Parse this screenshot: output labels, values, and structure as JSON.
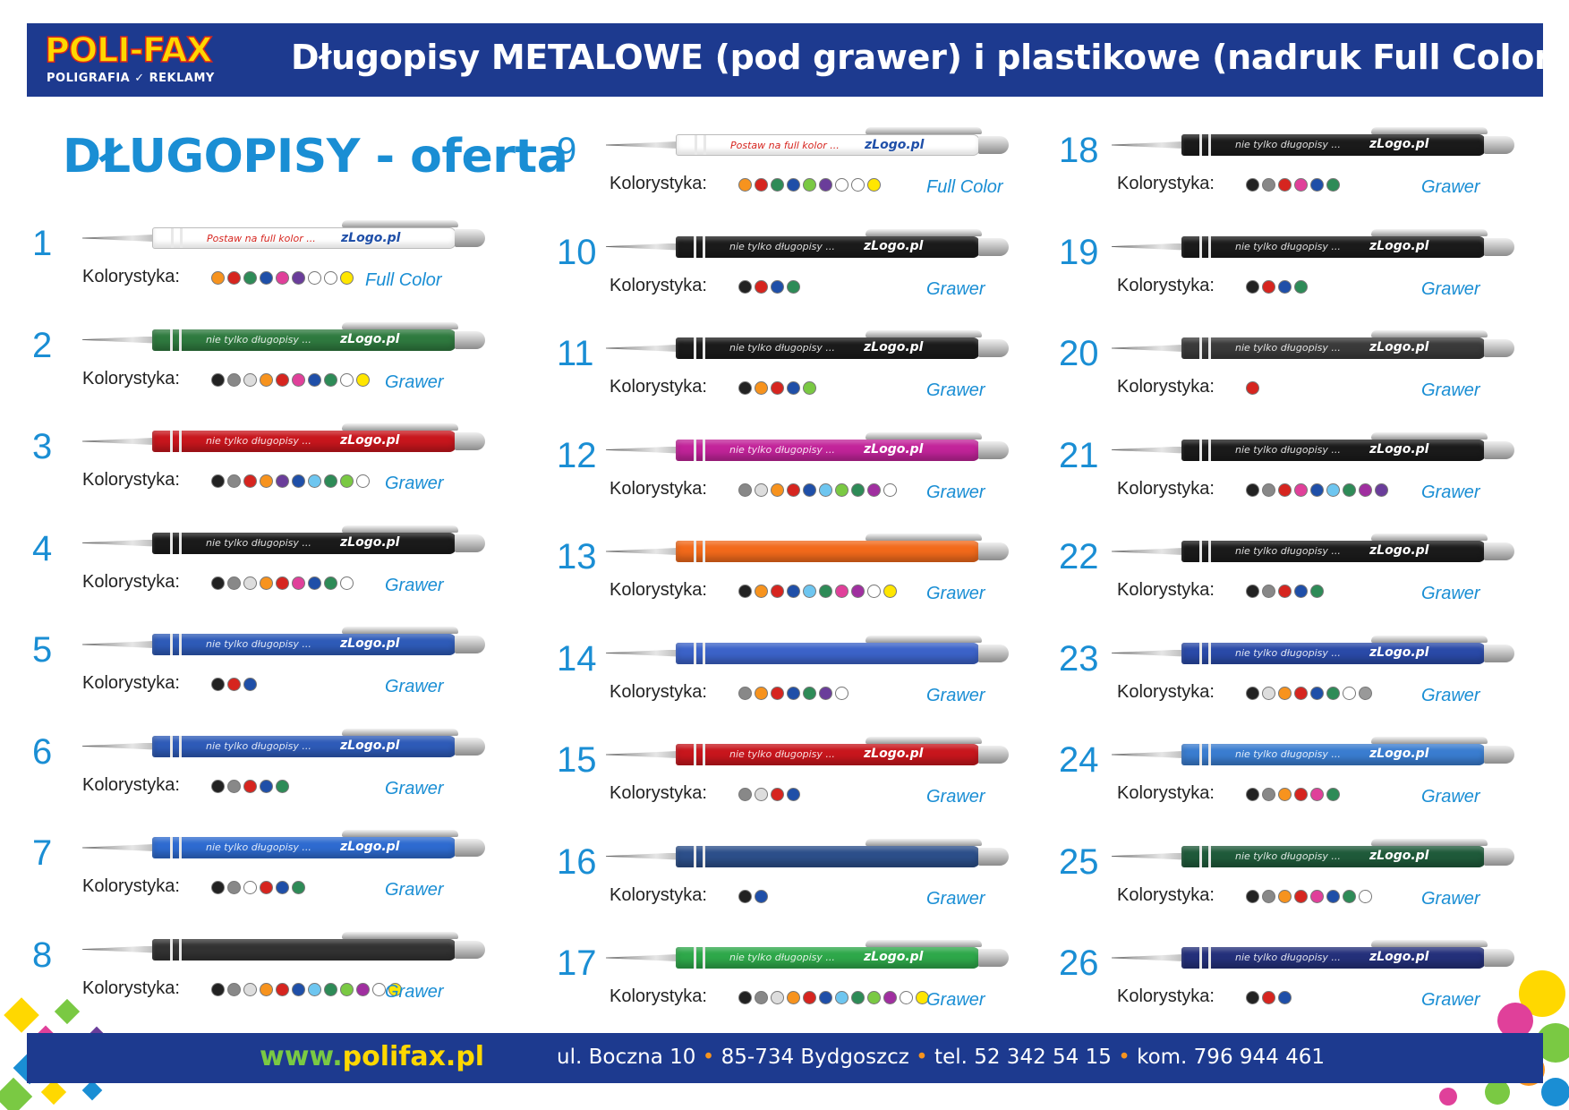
{
  "header": {
    "logo_top": "POLI-FAX",
    "logo_bottom": "POLIGRAFIA ✓ REKLAMY",
    "title": "Długopisy METALOWE (pod grawer) i plastikowe (nadruk Full Color)"
  },
  "offer_title": "DŁUGOPISY - oferta",
  "colorway_label": "Kolorystyka:",
  "colors": {
    "brand_blue": "#1d3a8f",
    "accent_blue": "#1a8ed4",
    "green": "#7ac943",
    "yellow": "#ffd800"
  },
  "items": [
    {
      "num": "1",
      "kind": "Full Color",
      "pen": "#ffffff",
      "text1": "Postaw na full kolor ...",
      "text2": "zLogo.pl",
      "dots": [
        "#f7931e",
        "#d6251f",
        "#2e8b57",
        "#1f4fa8",
        "#e0409a",
        "#6a3d9a",
        "#ffffff",
        "#ffffff",
        "#ffe600"
      ]
    },
    {
      "num": "2",
      "kind": "Grawer",
      "pen": "#2f7a3f",
      "text1": "nie tylko długopisy ...",
      "text2": "zLogo.pl",
      "dots": [
        "#222222",
        "#888888",
        "#dddddd",
        "#f7931e",
        "#d6251f",
        "#e0409a",
        "#1f4fa8",
        "#2e8b57",
        "#ffffff",
        "#ffe600"
      ]
    },
    {
      "num": "3",
      "kind": "Grawer",
      "pen": "#c8161d",
      "text1": "nie tylko długopisy ...",
      "text2": "zLogo.pl",
      "dots": [
        "#222222",
        "#888888",
        "#d6251f",
        "#f7931e",
        "#6a3d9a",
        "#1f4fa8",
        "#6ec6f0",
        "#2e8b57",
        "#7ac943",
        "#ffffff"
      ]
    },
    {
      "num": "4",
      "kind": "Grawer",
      "pen": "#1b1b1b",
      "text1": "nie tylko długopisy ...",
      "text2": "zLogo.pl",
      "dots": [
        "#222222",
        "#888888",
        "#dddddd",
        "#f7931e",
        "#d6251f",
        "#e0409a",
        "#1f4fa8",
        "#2e8b57",
        "#ffffff"
      ]
    },
    {
      "num": "5",
      "kind": "Grawer",
      "pen": "#2e5bb8",
      "text1": "nie tylko długopisy ...",
      "text2": "zLogo.pl",
      "dots": [
        "#222222",
        "#d6251f",
        "#1f4fa8"
      ]
    },
    {
      "num": "6",
      "kind": "Grawer",
      "pen": "#2e5bb8",
      "text1": "nie tylko długopisy ...",
      "text2": "zLogo.pl",
      "dots": [
        "#222222",
        "#888888",
        "#d6251f",
        "#1f4fa8",
        "#2e8b57"
      ]
    },
    {
      "num": "7",
      "kind": "Grawer",
      "pen": "#2e6bd0",
      "text1": "nie tylko długopisy ...",
      "text2": "zLogo.pl",
      "dots": [
        "#222222",
        "#888888",
        "#ffffff",
        "#d6251f",
        "#1f4fa8",
        "#2e8b57"
      ]
    },
    {
      "num": "8",
      "kind": "Grawer",
      "pen": "#333333",
      "text1": "",
      "text2": "",
      "dots": [
        "#222222",
        "#888888",
        "#dddddd",
        "#f7931e",
        "#d6251f",
        "#1f4fa8",
        "#6ec6f0",
        "#2e8b57",
        "#7ac943",
        "#a02fa0",
        "#ffffff",
        "#ffe600"
      ]
    },
    {
      "num": "9",
      "kind": "Full Color",
      "pen": "#ffffff",
      "text1": "Postaw na full kolor ...",
      "text2": "zLogo.pl",
      "dots": [
        "#f7931e",
        "#d6251f",
        "#2e8b57",
        "#1f4fa8",
        "#7ac943",
        "#6a3d9a",
        "#ffffff",
        "#ffffff",
        "#ffe600"
      ]
    },
    {
      "num": "10",
      "kind": "Grawer",
      "pen": "#1b1b1b",
      "text1": "nie tylko długopisy ...",
      "text2": "zLogo.pl",
      "dots": [
        "#222222",
        "#d6251f",
        "#1f4fa8",
        "#2e8b57"
      ]
    },
    {
      "num": "11",
      "kind": "Grawer",
      "pen": "#1b1b1b",
      "text1": "nie tylko długopisy ...",
      "text2": "zLogo.pl",
      "dots": [
        "#222222",
        "#f7931e",
        "#d6251f",
        "#1f4fa8",
        "#7ac943"
      ]
    },
    {
      "num": "12",
      "kind": "Grawer",
      "pen": "#c2249a",
      "text1": "nie tylko długopisy ...",
      "text2": "zLogo.pl",
      "dots": [
        "#888888",
        "#dddddd",
        "#f7931e",
        "#d6251f",
        "#1f4fa8",
        "#6ec6f0",
        "#7ac943",
        "#2e8b57",
        "#a02fa0",
        "#ffffff"
      ]
    },
    {
      "num": "13",
      "kind": "Grawer",
      "pen": "#f26a1b",
      "text1": "",
      "text2": "",
      "dots": [
        "#222222",
        "#f7931e",
        "#d6251f",
        "#1f4fa8",
        "#6ec6f0",
        "#2e8b57",
        "#e0409a",
        "#a02fa0",
        "#ffffff",
        "#ffe600"
      ]
    },
    {
      "num": "14",
      "kind": "Grawer",
      "pen": "#3c63c9",
      "text1": "",
      "text2": "",
      "dots": [
        "#888888",
        "#f7931e",
        "#d6251f",
        "#1f4fa8",
        "#2e8b57",
        "#6a3d9a",
        "#ffffff"
      ]
    },
    {
      "num": "15",
      "kind": "Grawer",
      "pen": "#c8161d",
      "text1": "nie tylko długopisy ...",
      "text2": "zLogo.pl",
      "dots": [
        "#888888",
        "#dddddd",
        "#d6251f",
        "#1f4fa8"
      ]
    },
    {
      "num": "16",
      "kind": "Grawer",
      "pen": "#2c4f8a",
      "text1": "",
      "text2": "",
      "dots": [
        "#222222",
        "#1f4fa8"
      ]
    },
    {
      "num": "17",
      "kind": "Grawer",
      "pen": "#2ea84a",
      "text1": "nie tylko długopisy ...",
      "text2": "zLogo.pl",
      "dots": [
        "#222222",
        "#888888",
        "#dddddd",
        "#f7931e",
        "#d6251f",
        "#1f4fa8",
        "#6ec6f0",
        "#2e8b57",
        "#7ac943",
        "#a02fa0",
        "#ffffff",
        "#ffe600"
      ]
    },
    {
      "num": "18",
      "kind": "Grawer",
      "pen": "#1b1b1b",
      "text1": "nie tylko długopisy ...",
      "text2": "zLogo.pl",
      "dots": [
        "#222222",
        "#888888",
        "#d6251f",
        "#e0409a",
        "#1f4fa8",
        "#2e8b57"
      ]
    },
    {
      "num": "19",
      "kind": "Grawer",
      "pen": "#1b1b1b",
      "text1": "nie tylko długopisy ...",
      "text2": "zLogo.pl",
      "dots": [
        "#222222",
        "#d6251f",
        "#1f4fa8",
        "#2e8b57"
      ]
    },
    {
      "num": "20",
      "kind": "Grawer",
      "pen": "#3a3a3a",
      "text1": "nie tylko długopisy ...",
      "text2": "zLogo.pl",
      "dots": [
        "#d6251f"
      ]
    },
    {
      "num": "21",
      "kind": "Grawer",
      "pen": "#1b1b1b",
      "text1": "nie tylko długopisy ...",
      "text2": "zLogo.pl",
      "dots": [
        "#222222",
        "#888888",
        "#d6251f",
        "#e0409a",
        "#1f4fa8",
        "#6ec6f0",
        "#2e8b57",
        "#a02fa0",
        "#6a3d9a"
      ]
    },
    {
      "num": "22",
      "kind": "Grawer",
      "pen": "#1b1b1b",
      "text1": "nie tylko długopisy ...",
      "text2": "zLogo.pl",
      "dots": [
        "#222222",
        "#888888",
        "#d6251f",
        "#1f4fa8",
        "#2e8b57"
      ]
    },
    {
      "num": "23",
      "kind": "Grawer",
      "pen": "#2a4aa8",
      "text1": "nie tylko długopisy ...",
      "text2": "zLogo.pl",
      "dots": [
        "#222222",
        "#dddddd",
        "#f7931e",
        "#d6251f",
        "#1f4fa8",
        "#2e8b57",
        "#ffffff",
        "#999999"
      ]
    },
    {
      "num": "24",
      "kind": "Grawer",
      "pen": "#3a7dd0",
      "text1": "nie tylko długopisy ...",
      "text2": "zLogo.pl",
      "dots": [
        "#222222",
        "#888888",
        "#f7931e",
        "#d6251f",
        "#e0409a",
        "#2e8b57"
      ]
    },
    {
      "num": "25",
      "kind": "Grawer",
      "pen": "#1f5a3a",
      "text1": "nie tylko długopisy ...",
      "text2": "zLogo.pl",
      "dots": [
        "#222222",
        "#888888",
        "#f7931e",
        "#d6251f",
        "#e0409a",
        "#1f4fa8",
        "#2e8b57",
        "#ffffff"
      ]
    },
    {
      "num": "26",
      "kind": "Grawer",
      "pen": "#24307a",
      "text1": "nie tylko długopisy ...",
      "text2": "zLogo.pl",
      "dots": [
        "#222222",
        "#d6251f",
        "#1f4fa8"
      ]
    }
  ],
  "footer": {
    "www_prefix": "www.",
    "www_domain": "polifax.pl",
    "address": "ul. Boczna 10",
    "city": "85-734 Bydgoszcz",
    "phone": "tel. 52 342 54 15",
    "mobile": "kom. 796 944 461",
    "separator": "•"
  }
}
